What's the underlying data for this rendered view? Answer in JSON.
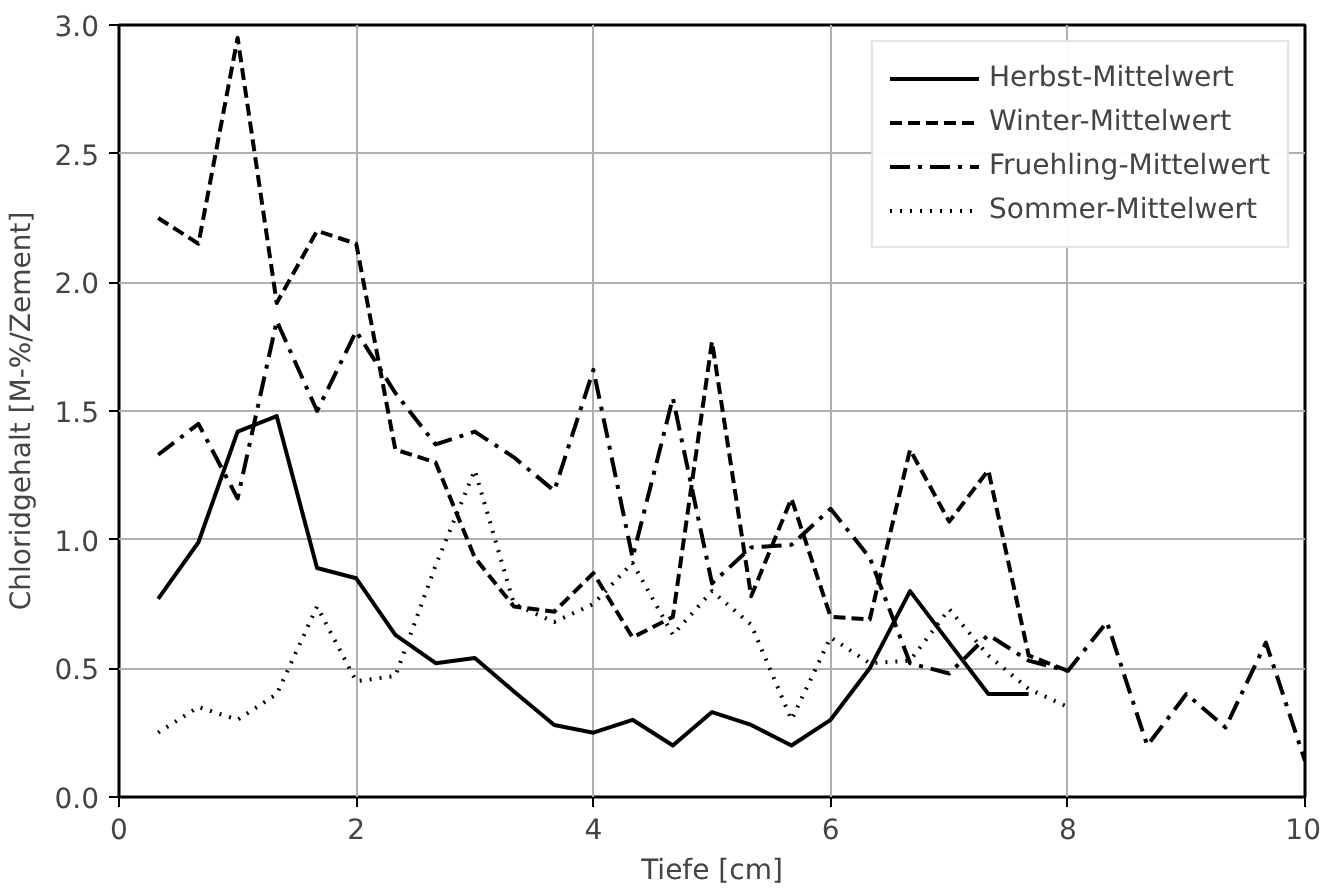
{
  "chart_data": {
    "type": "line",
    "xlabel": "Tiefe [cm]",
    "ylabel": "Chloridgehalt [M-%/Zement]",
    "xlim": [
      0,
      10
    ],
    "ylim": [
      0,
      3.0
    ],
    "xticks": [
      0,
      2,
      4,
      6,
      8,
      10
    ],
    "yticks": [
      {
        "value": 0,
        "label": "0.0"
      },
      {
        "value": 0.5,
        "label": "0.5"
      },
      {
        "value": 1,
        "label": "1.0"
      },
      {
        "value": 1.5,
        "label": "1.5"
      },
      {
        "value": 2,
        "label": "2.0"
      },
      {
        "value": 2.5,
        "label": "2.5"
      },
      {
        "value": 3,
        "label": "3.0"
      }
    ],
    "grid": true,
    "legend": "top right",
    "series": [
      {
        "name": "Herbst-Mittelwert",
        "color": "#000000",
        "line_style": "solid",
        "x": [
          0.33,
          0.67,
          1.0,
          1.33,
          1.67,
          2.0,
          2.33,
          2.67,
          3.0,
          3.33,
          3.67,
          4.0,
          4.33,
          4.67,
          5.0,
          5.33,
          5.67,
          6.0,
          6.33,
          6.67,
          7.0,
          7.33,
          7.67
        ],
        "values": [
          0.77,
          0.99,
          1.42,
          1.48,
          0.89,
          0.85,
          0.63,
          0.52,
          0.54,
          0.41,
          0.28,
          0.25,
          0.3,
          0.2,
          0.33,
          0.28,
          0.2,
          0.3,
          0.5,
          0.8,
          0.6,
          0.4,
          0.4
        ]
      },
      {
        "name": "Winter-Mittelwert",
        "color": "#000000",
        "line_style": "dashed",
        "x": [
          0.33,
          0.67,
          1.0,
          1.33,
          1.67,
          2.0,
          2.33,
          2.67,
          3.0,
          3.33,
          3.67,
          4.0,
          4.33,
          4.67,
          5.0,
          5.33,
          5.67,
          6.0,
          6.33,
          6.67,
          7.0,
          7.33,
          7.67,
          8.0
        ],
        "values": [
          2.25,
          2.15,
          2.95,
          1.92,
          2.2,
          2.15,
          1.35,
          1.3,
          0.93,
          0.74,
          0.72,
          0.87,
          0.62,
          0.7,
          1.77,
          0.78,
          1.16,
          0.7,
          0.69,
          1.35,
          1.07,
          1.27,
          0.55,
          0.49
        ]
      },
      {
        "name": "Fruehling-Mittelwert",
        "color": "#000000",
        "line_style": "dashdot",
        "x": [
          0.33,
          0.67,
          1.0,
          1.33,
          1.67,
          2.0,
          2.33,
          2.67,
          3.0,
          3.33,
          3.67,
          4.0,
          4.33,
          4.67,
          5.0,
          5.33,
          5.67,
          6.0,
          6.33,
          6.67,
          7.0,
          7.33,
          7.67,
          8.0,
          8.33,
          8.67,
          9.0,
          9.33,
          9.67,
          10.0
        ],
        "values": [
          1.33,
          1.45,
          1.16,
          1.85,
          1.5,
          1.81,
          1.57,
          1.37,
          1.42,
          1.32,
          1.19,
          1.66,
          0.93,
          1.55,
          0.83,
          0.97,
          0.98,
          1.12,
          0.93,
          0.52,
          0.48,
          0.63,
          0.53,
          0.49,
          0.68,
          0.2,
          0.4,
          0.27,
          0.6,
          0.14
        ]
      },
      {
        "name": "Sommer-Mittelwert",
        "color": "#000000",
        "line_style": "dotted",
        "x": [
          0.33,
          0.67,
          1.0,
          1.33,
          1.67,
          2.0,
          2.33,
          2.67,
          3.0,
          3.33,
          3.67,
          4.0,
          4.33,
          4.67,
          5.0,
          5.33,
          5.67,
          6.0,
          6.33,
          6.67,
          7.0,
          7.33,
          7.67,
          8.0
        ],
        "values": [
          0.25,
          0.35,
          0.3,
          0.4,
          0.74,
          0.45,
          0.47,
          0.9,
          1.27,
          0.75,
          0.68,
          0.75,
          0.91,
          0.63,
          0.8,
          0.67,
          0.3,
          0.62,
          0.52,
          0.53,
          0.73,
          0.55,
          0.42,
          0.35
        ]
      }
    ]
  }
}
